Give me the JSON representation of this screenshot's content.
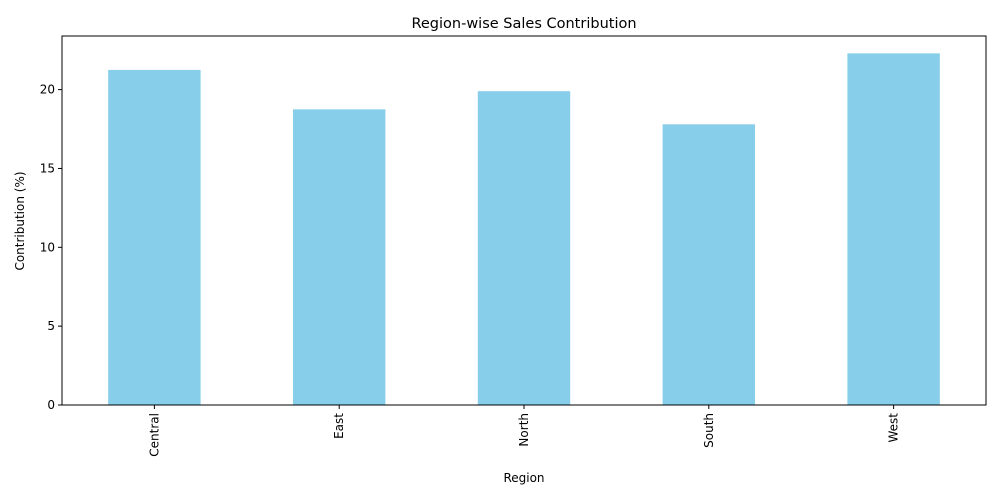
{
  "chart_data": {
    "type": "bar",
    "title": "Region-wise Sales Contribution",
    "xlabel": "Region",
    "ylabel": "Contribution (%)",
    "categories": [
      "Central",
      "East",
      "North",
      "South",
      "West"
    ],
    "values": [
      21.25,
      18.75,
      19.9,
      17.8,
      22.3
    ],
    "yticks": [
      0,
      5,
      10,
      15,
      20
    ],
    "ylim": [
      0,
      23.4
    ],
    "bar_color": "#87CEEB",
    "grid": false,
    "x_tick_rotation": "vertical"
  }
}
